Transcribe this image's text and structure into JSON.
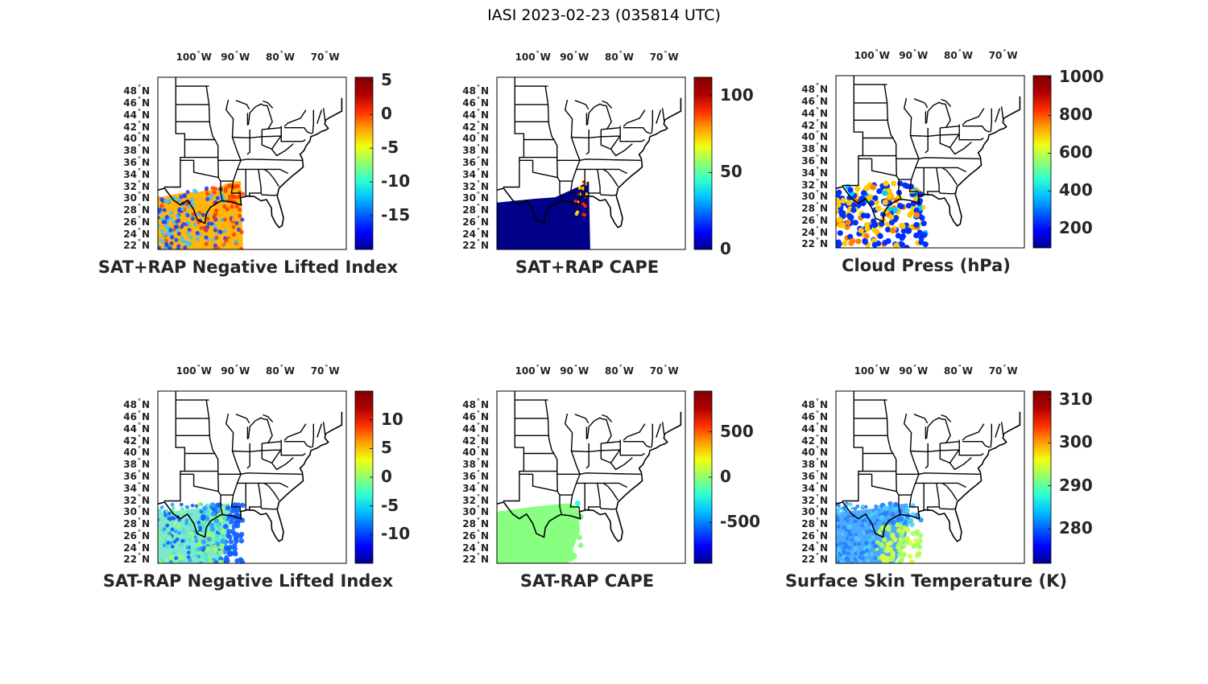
{
  "figure": {
    "title": "IASI 2023-02-23 (035814 UTC)"
  },
  "map": {
    "lon_ticks": [
      "100",
      "90",
      "80",
      "70"
    ],
    "lon_suffix": "W",
    "lat_ticks": [
      "48",
      "46",
      "44",
      "42",
      "40",
      "38",
      "36",
      "34",
      "32",
      "30",
      "28",
      "26",
      "24",
      "22"
    ],
    "lat_suffix": "N",
    "degree_symbol": "°"
  },
  "panels": [
    {
      "title": "SAT+RAP Negative Lifted Index",
      "colorbar_ticks": [
        "5",
        "0",
        "-5",
        "-10",
        "-15"
      ],
      "colorbar_range": [
        -20,
        5.5
      ],
      "data_colors": [
        "#ff3b00",
        "#ffb000",
        "#3cc6ff",
        "#1e3cff"
      ],
      "fill_style": "mixed-warm"
    },
    {
      "title": "SAT+RAP CAPE",
      "colorbar_ticks": [
        "100",
        "50",
        "0"
      ],
      "colorbar_range": [
        0,
        112
      ],
      "data_colors": [
        "#00008f",
        "#ff2000",
        "#ffd000"
      ],
      "fill_style": "dark-blue"
    },
    {
      "title": "Cloud Press (hPa)",
      "colorbar_ticks": [
        "1000",
        "800",
        "600",
        "400",
        "200"
      ],
      "colorbar_range": [
        100,
        1010
      ],
      "data_colors": [
        "#0030ff",
        "#ffcc00",
        "#ff8000",
        "#00d0ff"
      ],
      "fill_style": "cloud-dots"
    },
    {
      "title": "SAT-RAP Negative Lifted Index",
      "colorbar_ticks": [
        "10",
        "5",
        "0",
        "-5",
        "-10"
      ],
      "colorbar_range": [
        -15,
        15
      ],
      "data_colors": [
        "#50e6d0",
        "#2aa0ff",
        "#1060ff",
        "#9cff6c"
      ],
      "fill_style": "cyan-mix"
    },
    {
      "title": "SAT-RAP CAPE",
      "colorbar_ticks": [
        "500",
        "0",
        "-500"
      ],
      "colorbar_range": [
        -950,
        950
      ],
      "data_colors": [
        "#88ff80"
      ],
      "fill_style": "green"
    },
    {
      "title": "Surface Skin Temperature (K)",
      "colorbar_ticks": [
        "310",
        "300",
        "290",
        "280"
      ],
      "colorbar_range": [
        272,
        312
      ],
      "data_colors": [
        "#2a7fff",
        "#4ad0ff",
        "#d8ff40",
        "#a0ff60"
      ],
      "fill_style": "temp"
    }
  ]
}
